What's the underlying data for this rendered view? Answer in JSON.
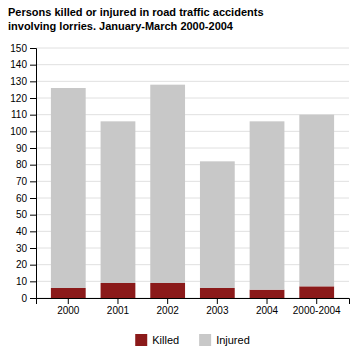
{
  "chart_data": {
    "type": "bar",
    "stacked": true,
    "title": "Persons killed or injured in road traffic accidents\ninvolving lorries. January-March 2000-2004",
    "categories": [
      "2000",
      "2001",
      "2002",
      "2003",
      "2004",
      "2000-2004"
    ],
    "series": [
      {
        "name": "Killed",
        "color": "#8B1A1A",
        "values": [
          6,
          9,
          9,
          6,
          5,
          7
        ]
      },
      {
        "name": "Injured",
        "color": "#C8C8C8",
        "values": [
          120,
          97,
          119,
          76,
          101,
          103
        ]
      }
    ],
    "ylim": [
      0,
      150
    ],
    "yticks": [
      0,
      10,
      20,
      30,
      40,
      50,
      60,
      70,
      80,
      90,
      100,
      110,
      120,
      130,
      140,
      150
    ],
    "grid": true,
    "legend": "bottom"
  }
}
